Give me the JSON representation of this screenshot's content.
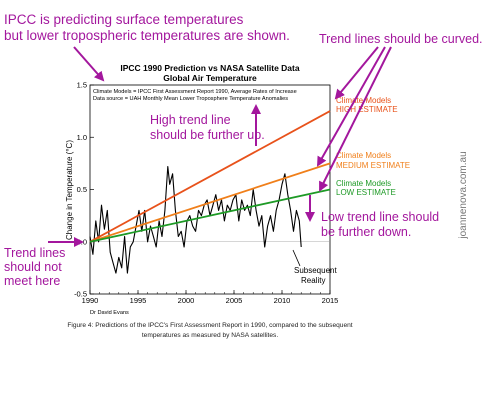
{
  "annotations": {
    "top_left_1": "IPCC is predicting surface temperatures",
    "top_left_2": "but lower tropospheric temperatures are shown.",
    "top_right": "Trend lines should be curved.",
    "high_1": "High trend line",
    "high_2": "should be further up.",
    "low_1": "Low trend line should",
    "low_2": "be further down.",
    "left_1": "Trend lines",
    "left_2": "should not",
    "left_3": "meet here",
    "watermark": "joannenova.com.au"
  },
  "colors": {
    "annotation": "#a3179d",
    "high": "#e8521b",
    "medium": "#f07f1a",
    "low": "#1e9a26",
    "obs": "#000000"
  },
  "chart_data": {
    "type": "line",
    "title": "IPCC 1990 Prediction vs NASA Satellite Data",
    "subtitle": "Global Air Temperature",
    "note1": "Climate Models = IPCC First Assessment Report 1990, Average Rates of Increase",
    "note2": "Data source = UAH Monthly Mean Lower Troposphere Temperature Anomalies",
    "ylabel": "Change in Temperature (°C)",
    "xlim": [
      1990,
      2015
    ],
    "ylim": [
      -0.5,
      1.5
    ],
    "x_ticks": [
      "1990",
      "1995",
      "2000",
      "2005",
      "2010",
      "2015"
    ],
    "y_ticks": [
      "-0.5",
      "0.0",
      "0.5",
      "1.0",
      "1.5"
    ],
    "credit": "Dr David Evans",
    "caption1": "Figure 4: Predictions of the IPCC's First Assessment Report in 1990, compared to the subsequent",
    "caption2": "temperatures as measured by NASA satellites.",
    "observed_label_1": "Subsequent",
    "observed_label_2": "Reality",
    "series": [
      {
        "name": "Climate Models HIGH ESTIMATE",
        "label_1": "Climate Models",
        "label_2": "HIGH ESTIMATE",
        "x": [
          1990,
          2015
        ],
        "y": [
          0.0,
          1.25
        ]
      },
      {
        "name": "Climate Models MEDIUM ESTIMATE",
        "label_1": "Climate Models",
        "label_2": "MEDIUM ESTIMATE",
        "x": [
          1990,
          2015
        ],
        "y": [
          0.0,
          0.75
        ]
      },
      {
        "name": "Climate Models LOW ESTIMATE",
        "label_1": "Climate Models",
        "label_2": "LOW ESTIMATE",
        "x": [
          1990,
          2015
        ],
        "y": [
          0.0,
          0.5
        ]
      },
      {
        "name": "Subsequent Reality",
        "x": [
          1990.0,
          1990.3,
          1990.6,
          1990.9,
          1991.2,
          1991.5,
          1991.8,
          1992.1,
          1992.4,
          1992.7,
          1993.0,
          1993.3,
          1993.6,
          1993.9,
          1994.2,
          1994.5,
          1994.8,
          1995.1,
          1995.4,
          1995.7,
          1996.0,
          1996.3,
          1996.6,
          1996.9,
          1997.2,
          1997.5,
          1997.8,
          1998.1,
          1998.3,
          1998.6,
          1998.9,
          1999.2,
          1999.5,
          1999.8,
          2000.1,
          2000.4,
          2000.7,
          2001.0,
          2001.3,
          2001.6,
          2001.9,
          2002.2,
          2002.5,
          2002.8,
          2003.1,
          2003.4,
          2003.7,
          2004.0,
          2004.3,
          2004.6,
          2004.9,
          2005.2,
          2005.5,
          2005.8,
          2006.1,
          2006.4,
          2006.7,
          2007.0,
          2007.3,
          2007.6,
          2007.9,
          2008.2,
          2008.5,
          2008.8,
          2009.1,
          2009.4,
          2009.7,
          2010.0,
          2010.3,
          2010.6,
          2010.9,
          2011.2,
          2011.5,
          2011.8,
          2012.0
        ],
        "y": [
          0.05,
          -0.12,
          0.2,
          0.0,
          0.35,
          0.12,
          0.3,
          -0.1,
          -0.2,
          -0.3,
          -0.15,
          -0.25,
          0.05,
          -0.3,
          -0.05,
          0.0,
          0.15,
          0.3,
          0.1,
          0.3,
          0.0,
          0.15,
          0.05,
          -0.05,
          0.2,
          0.05,
          0.3,
          0.72,
          0.55,
          0.65,
          0.3,
          0.05,
          0.1,
          -0.05,
          0.2,
          0.25,
          0.15,
          0.1,
          0.3,
          0.25,
          0.35,
          0.4,
          0.25,
          0.35,
          0.45,
          0.3,
          0.4,
          0.2,
          0.35,
          0.3,
          0.4,
          0.45,
          0.2,
          0.4,
          0.3,
          0.35,
          0.25,
          0.5,
          0.3,
          0.15,
          0.25,
          -0.05,
          0.15,
          0.25,
          0.1,
          0.3,
          0.4,
          0.55,
          0.65,
          0.45,
          0.3,
          0.1,
          0.3,
          0.2,
          -0.05
        ]
      }
    ]
  }
}
